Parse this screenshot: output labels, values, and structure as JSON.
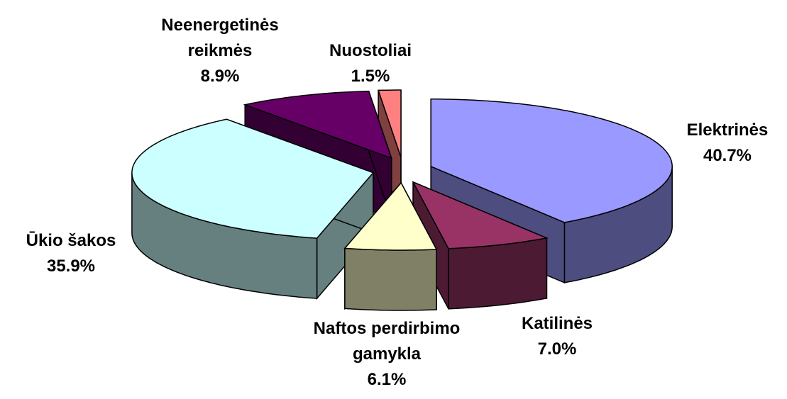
{
  "chart_data": {
    "type": "pie3d",
    "categories": [
      "Elektrinės",
      "Katilinės",
      "Naftos perdirbimo gamykla",
      "Ūkio šakos",
      "Neenergetinės reikmės",
      "Nuostoliai"
    ],
    "values": [
      40.7,
      7.0,
      6.1,
      35.9,
      8.9,
      1.5
    ],
    "value_labels": [
      "40.7%",
      "7.0%",
      "6.1%",
      "35.9%",
      "8.9%",
      "1.5%"
    ],
    "colors": [
      "#9999ff",
      "#993366",
      "#ffffcc",
      "#ccffff",
      "#660066",
      "#ff8080"
    ]
  }
}
